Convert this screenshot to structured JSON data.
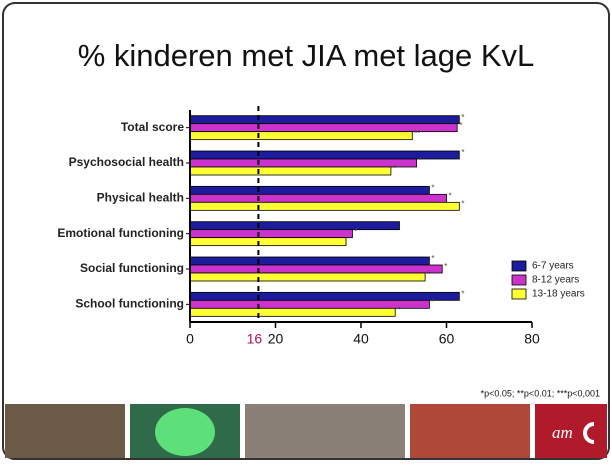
{
  "chart_data": {
    "type": "bar",
    "orientation": "horizontal",
    "title": "% kinderen met JIA met lage KvL",
    "categories": [
      "Total score",
      "Psychosocial health",
      "Physical health",
      "Emotional functioning",
      "Social functioning",
      "School functioning"
    ],
    "series": [
      {
        "name": "6-7 years",
        "color": "#1c1c9c",
        "values": [
          63,
          63,
          56,
          49,
          56,
          63
        ],
        "significance": [
          "*",
          "*",
          "*",
          null,
          "*",
          "*"
        ]
      },
      {
        "name": "8-12 years",
        "color": "#cc33cc",
        "values": [
          62.5,
          53,
          60,
          38,
          59,
          56
        ],
        "significance": [
          "*",
          "*",
          "*",
          "*",
          "*",
          "*"
        ]
      },
      {
        "name": "13-18 years",
        "color": "#ffff33",
        "values": [
          52,
          47,
          63,
          36.5,
          55,
          48
        ],
        "significance": [
          "**",
          "*",
          "*",
          null,
          "*",
          "*"
        ]
      }
    ],
    "xlim": [
      0,
      80
    ],
    "xticks": [
      0,
      20,
      40,
      60,
      80
    ],
    "reference_line": 16,
    "legend": "right",
    "footnote": "*p<0.05; **p<0.01; ***p<0,001",
    "logo": "am"
  }
}
